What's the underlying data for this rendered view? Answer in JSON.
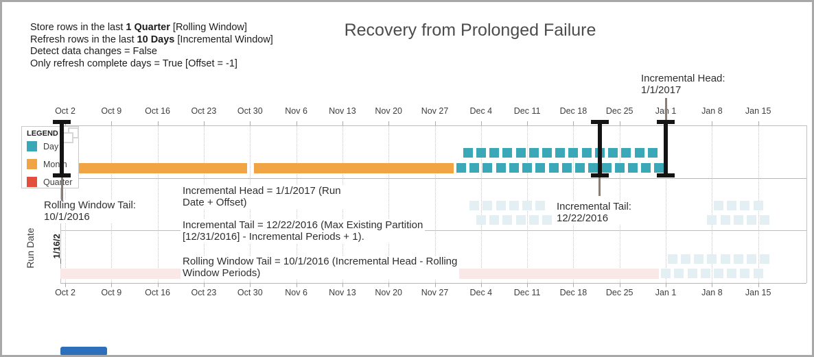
{
  "window": {
    "border_color": "#a8a8a8",
    "scrollbar_color": "#2e6fbb"
  },
  "header": {
    "title": "Recovery from Prolonged Failure",
    "config_lines": [
      {
        "pre": "Store rows in the last ",
        "bold": "1 Quarter",
        "post": " [Rolling Window]"
      },
      {
        "pre": "Refresh rows in the last ",
        "bold": "10 Days",
        "post": " [Incremental Window]"
      },
      {
        "pre": "Detect data changes = False",
        "bold": "",
        "post": ""
      },
      {
        "pre": "Only refresh complete days = True [Offset = -1]",
        "bold": "",
        "post": ""
      }
    ]
  },
  "legend": {
    "title": "LEGEND",
    "items": [
      {
        "label": "Day",
        "color": "#3BA8B7"
      },
      {
        "label": "Month",
        "color": "#F1A443"
      },
      {
        "label": "Quarter",
        "color": "#E2503C"
      }
    ]
  },
  "row_labels": {
    "y_axis_title": "Run Date",
    "current_row": "_1/16/2"
  },
  "annotations": {
    "incremental_head_top": "Incremental Head:\n1/1/2017",
    "rolling_window_tail_left": "Rolling Window Tail:\n10/1/2016",
    "incremental_head_note": "Incremental Head = 1/1/2017 (Run\nDate + Offset)",
    "incremental_tail_note": "Incremental Tail = 12/22/2016 (Max Existing Partition\n[12/31/2016] - Incremental Periods + 1).",
    "rolling_window_note": "Rolling Window Tail = 10/1/2016 (Incremental Head - Rolling\nWindow Periods)",
    "incremental_tail_right": "Incremental Tail:\n12/22/2016"
  },
  "chart_data": {
    "type": "gantt",
    "title": "Recovery from Prolonged Failure",
    "x_tick_labels": [
      "Oct 2",
      "Oct 9",
      "Oct 16",
      "Oct 23",
      "Oct 30",
      "Nov 6",
      "Nov 13",
      "Nov 20",
      "Nov 27",
      "Dec 4",
      "Dec 11",
      "Dec 18",
      "Dec 25",
      "Jan 1",
      "Jan 8",
      "Jan 15"
    ],
    "x_range": [
      "10/1/2016",
      "1/16/2017"
    ],
    "legend_entries": [
      "Day",
      "Month",
      "Quarter"
    ],
    "colors": {
      "day": "#3BA8B7",
      "month": "#F1A443",
      "quarter": "#E2503C",
      "day_faded": "#E3EFF3",
      "quarter_faded": "#FAE8E7"
    },
    "markers": [
      {
        "name": "Rolling Window Tail",
        "date": "10/1/2016",
        "day_offset": 0.5,
        "connector": "below",
        "connector_len": 34
      },
      {
        "name": "Incremental Tail",
        "date": "12/22/2016",
        "day_offset": 82,
        "connector": "below",
        "connector_len": 27
      },
      {
        "name": "Incremental Head",
        "date": "1/1/2017",
        "day_offset": 92,
        "connector": "above",
        "connector_len": 32
      }
    ],
    "month_bars": [
      {
        "label": "October 2016",
        "d1": 0.3,
        "d2": 28.6
      },
      {
        "label": "November 2016",
        "d1": 29.6,
        "d2": 59.9
      }
    ],
    "quarter_bars": [
      {
        "label": "Q4 2016",
        "d1": 0.3,
        "d2": 91,
        "band": "B"
      }
    ],
    "day_groups": [
      {
        "band": "main",
        "start_offset": 61,
        "count": 31,
        "first_row": "bottom",
        "faded": false,
        "dates": "12/1/2016 - 12/31/2016"
      },
      {
        "band": "A",
        "start_offset": 63,
        "count": 12,
        "first_row": "top",
        "faded": true,
        "dates": "12/3/2016 - 12/14/2016"
      },
      {
        "band": "A",
        "start_offset": 99,
        "count": 9,
        "first_row": "bottom",
        "faded": true,
        "dates": "1/8/2017 - 1/16/2017"
      },
      {
        "band": "B",
        "start_offset": 92,
        "count": 16,
        "first_row": "bottom",
        "faded": true,
        "dates": "1/1/2017 - 1/16/2017"
      }
    ]
  }
}
